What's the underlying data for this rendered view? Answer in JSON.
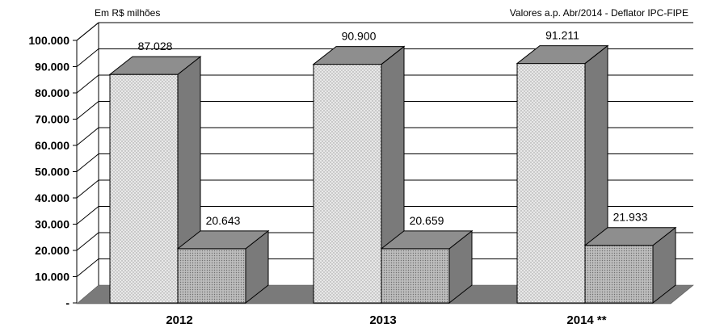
{
  "chart_data": {
    "type": "bar",
    "unit_note": "Em R$ milhões",
    "source_note": "Valores a.p. Abr/2014 - Deflator IPC-FIPE",
    "categories": [
      "2012",
      "2013",
      "2014 **"
    ],
    "series": [
      {
        "values": [
          87028,
          90900,
          91211
        ],
        "labels": [
          "87.028",
          "90.900",
          "91.211"
        ]
      },
      {
        "values": [
          20643,
          20659,
          21933
        ],
        "labels": [
          "20.643",
          "20.659",
          "21.933"
        ]
      }
    ],
    "ylim": [
      0,
      100000
    ],
    "yticks": [
      "-",
      "10.000",
      "20.000",
      "30.000",
      "40.000",
      "50.000",
      "60.000",
      "70.000",
      "80.000",
      "90.000",
      "100.000"
    ],
    "grid": true,
    "style": "3d",
    "colors": {
      "series1_front": "#e8e8e8",
      "series1_dots": "#9a9a9a",
      "series2_front": "#bdbdbd",
      "series2_dots": "#6f6f6f",
      "bar_side": "#7a7a7a",
      "bar_top": "#8e8e8e",
      "floor": "#7a7a7a",
      "grid": "#000000"
    }
  }
}
